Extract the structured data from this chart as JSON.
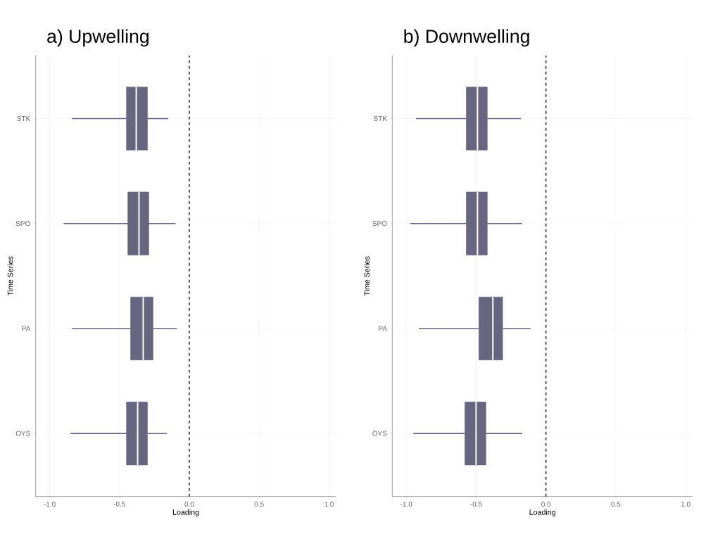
{
  "chart_data": [
    {
      "type": "box",
      "title": "a) Upwelling",
      "xlabel": "Loading",
      "ylabel": "Time Series",
      "orientation": "horizontal",
      "categories": [
        "STK",
        "SPO",
        "PA",
        "OYS"
      ],
      "color": "#686580",
      "boxes": [
        {
          "low": -0.84,
          "q1": -0.45,
          "median": -0.38,
          "q3": -0.3,
          "high": -0.15
        },
        {
          "low": -0.9,
          "q1": -0.44,
          "median": -0.36,
          "q3": -0.29,
          "high": -0.1
        },
        {
          "low": -0.84,
          "q1": -0.42,
          "median": -0.33,
          "q3": -0.26,
          "high": -0.09
        },
        {
          "low": -0.85,
          "q1": -0.45,
          "median": -0.37,
          "q3": -0.3,
          "high": -0.16
        }
      ],
      "xlim": [
        -1.1,
        1.05
      ],
      "xticks": [
        {
          "value": -1.0,
          "label": "-1.0"
        },
        {
          "value": -0.5,
          "label": "-0.5"
        },
        {
          "value": 0,
          "label": "0.0"
        },
        {
          "value": 0.5,
          "label": "0.5"
        },
        {
          "value": 1.0,
          "label": "1.0"
        }
      ],
      "ref_lines": [
        {
          "axis": "x",
          "value": 0,
          "line_style": "dashed",
          "color": "#333333"
        }
      ],
      "grid": true
    },
    {
      "type": "box",
      "title": "b) Downwelling",
      "xlabel": "Loading",
      "ylabel": "Time Series",
      "orientation": "horizontal",
      "categories": [
        "STK",
        "SPO",
        "PA",
        "OYS"
      ],
      "color": "#686580",
      "boxes": [
        {
          "low": -0.93,
          "q1": -0.57,
          "median": -0.49,
          "q3": -0.42,
          "high": -0.18
        },
        {
          "low": -0.97,
          "q1": -0.57,
          "median": -0.49,
          "q3": -0.42,
          "high": -0.17
        },
        {
          "low": -0.91,
          "q1": -0.48,
          "median": -0.38,
          "q3": -0.31,
          "high": -0.11
        },
        {
          "low": -0.95,
          "q1": -0.58,
          "median": -0.5,
          "q3": -0.43,
          "high": -0.17
        }
      ],
      "xlim": [
        -1.1,
        1.05
      ],
      "xticks": [
        {
          "value": -1.0,
          "label": "-1.0"
        },
        {
          "value": -0.5,
          "label": "-0.5"
        },
        {
          "value": 0,
          "label": "0.0"
        },
        {
          "value": 0.5,
          "label": "0.5"
        },
        {
          "value": 1.0,
          "label": "1.0"
        }
      ],
      "ref_lines": [
        {
          "axis": "x",
          "value": 0,
          "line_style": "dashed",
          "color": "#333333"
        }
      ],
      "grid": true
    }
  ]
}
